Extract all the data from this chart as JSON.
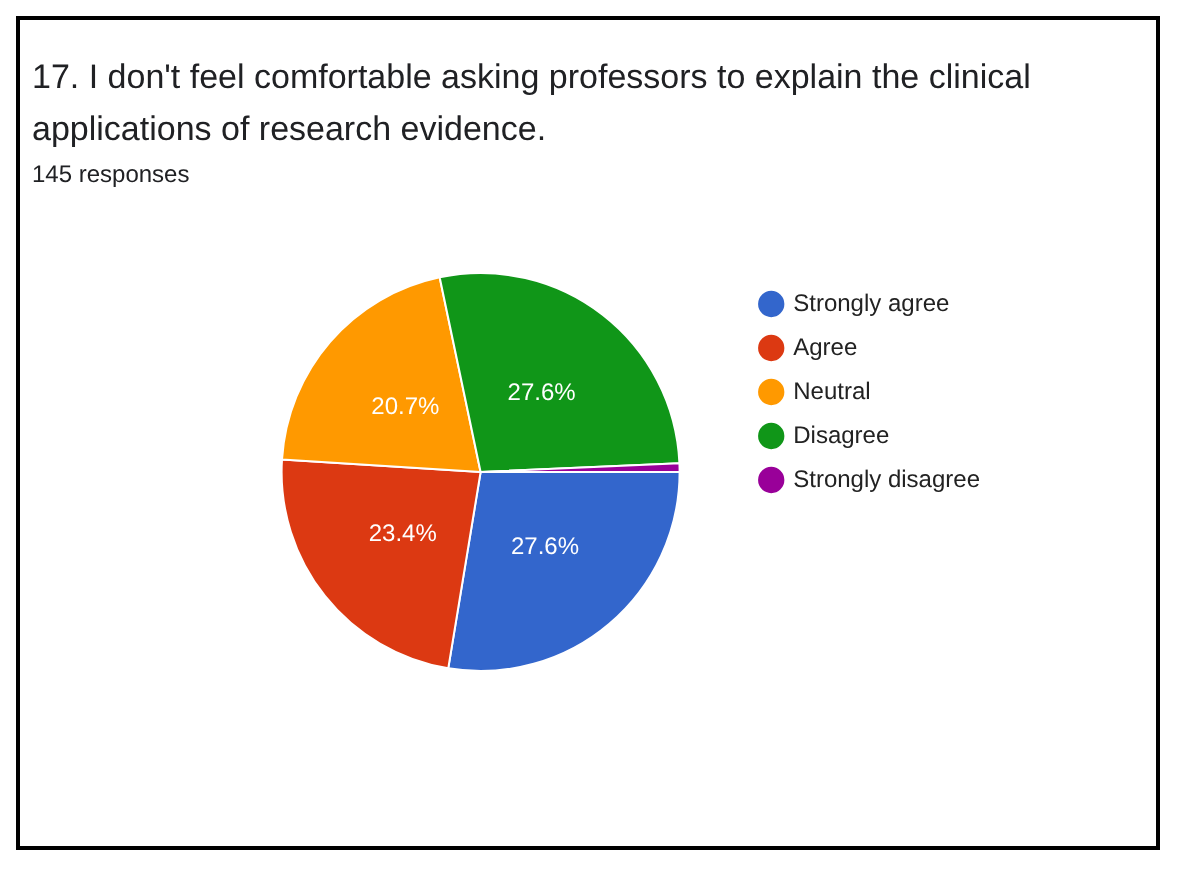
{
  "chart_data": {
    "type": "pie",
    "title": "17. I don't feel comfortable asking professors to explain the clinical applications of research evidence.",
    "subtitle": "145 responses",
    "categories": [
      "Strongly agree",
      "Agree",
      "Neutral",
      "Disagree",
      "Strongly disagree"
    ],
    "values": [
      27.6,
      23.4,
      20.7,
      27.6,
      0.7
    ],
    "colors": [
      "#3366cc",
      "#dc3912",
      "#ff9900",
      "#109618",
      "#990099"
    ],
    "value_labels": [
      "27.6%",
      "23.4%",
      "20.7%",
      "27.6%",
      null
    ],
    "legend": "right"
  }
}
